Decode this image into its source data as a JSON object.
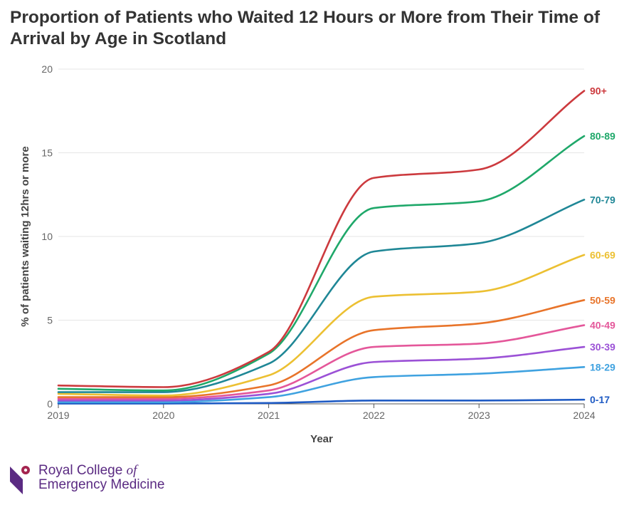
{
  "chart_data": {
    "type": "line",
    "title": "Proportion of Patients who Waited 12 Hours or More from Their Time of Arrival by Age in Scotland",
    "xlabel": "Year",
    "ylabel": "% of patients waiting 12hrs or more",
    "x": [
      2019,
      2020,
      2021,
      2022,
      2023,
      2024
    ],
    "x_tick_labels": [
      "2019",
      "2020",
      "2021",
      "2022",
      "2023",
      "2024"
    ],
    "y_ticks": [
      0,
      5,
      10,
      15,
      20
    ],
    "y_tick_labels": [
      "0",
      "5",
      "10",
      "15",
      "20"
    ],
    "ylim": [
      0,
      20
    ],
    "grid": true,
    "series": [
      {
        "name": "0-17",
        "color": "#1f5bc4",
        "values": [
          0.02,
          0.02,
          0.05,
          0.2,
          0.2,
          0.25
        ]
      },
      {
        "name": "18-29",
        "color": "#3fa2e0",
        "values": [
          0.1,
          0.1,
          0.4,
          1.6,
          1.8,
          2.2
        ]
      },
      {
        "name": "30-39",
        "color": "#9b51d6",
        "values": [
          0.2,
          0.2,
          0.6,
          2.5,
          2.7,
          3.4
        ]
      },
      {
        "name": "40-49",
        "color": "#e4579a",
        "values": [
          0.3,
          0.3,
          0.8,
          3.4,
          3.6,
          4.7
        ]
      },
      {
        "name": "50-59",
        "color": "#e8742a",
        "values": [
          0.4,
          0.4,
          1.1,
          4.4,
          4.8,
          6.2
        ]
      },
      {
        "name": "60-69",
        "color": "#ecc032",
        "values": [
          0.6,
          0.5,
          1.7,
          6.4,
          6.7,
          8.9
        ]
      },
      {
        "name": "70-79",
        "color": "#1f8796",
        "values": [
          0.7,
          0.7,
          2.4,
          9.1,
          9.6,
          12.2
        ]
      },
      {
        "name": "80-89",
        "color": "#1fa86a",
        "values": [
          0.9,
          0.8,
          3.0,
          11.7,
          12.1,
          16.0
        ]
      },
      {
        "name": "90+",
        "color": "#cc3a3e",
        "values": [
          1.1,
          1.0,
          3.1,
          13.5,
          14.0,
          18.7
        ]
      }
    ]
  },
  "branding": {
    "line1": "Royal College",
    "of": "of",
    "line2": "Emergency Medicine",
    "color": "#5a2a82"
  }
}
